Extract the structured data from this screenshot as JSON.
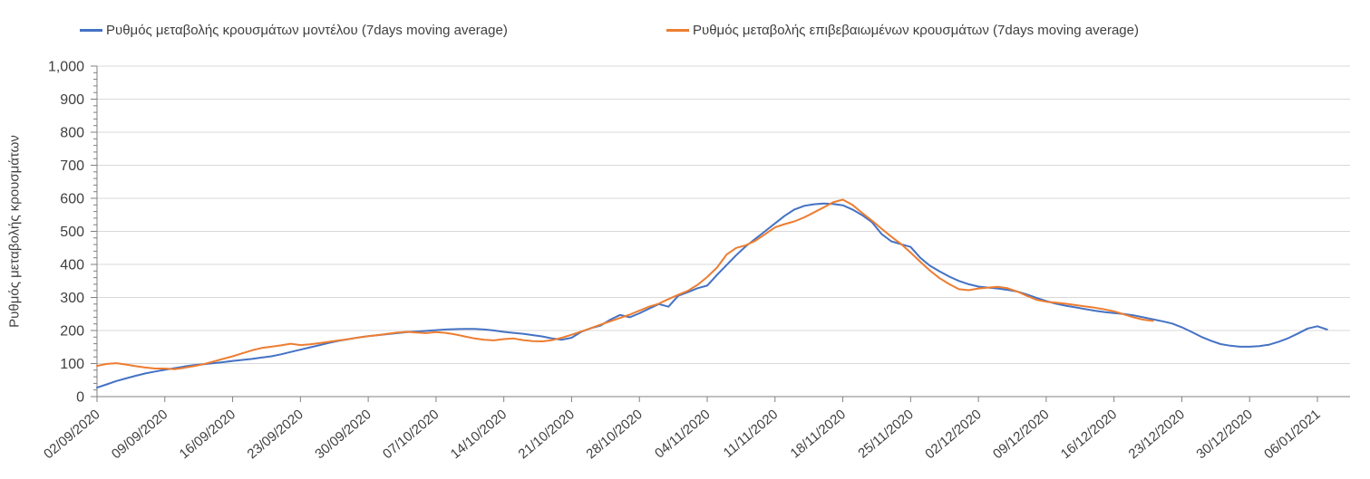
{
  "legend": {
    "items": [
      {
        "label": "Ρυθμός μεταβολής κρουσμάτων μοντέλου (7days moving average)",
        "color": "#4472C4"
      },
      {
        "label": "Ρυθμός μεταβολής επιβεβαιωμένων κρουσμάτων (7days moving average)",
        "color": "#ED7D31"
      }
    ]
  },
  "chart_data": {
    "type": "line",
    "title": "",
    "xlabel": "",
    "ylabel": "Ρυθμός μεταβολής κρουσμάτων",
    "ylim": [
      0,
      1000
    ],
    "y_tick_interval": 100,
    "y_minor_tick_interval": 20,
    "y_tick_labels": [
      "0",
      "100",
      "200",
      "300",
      "400",
      "500",
      "600",
      "700",
      "800",
      "900",
      "1,000"
    ],
    "grid": true,
    "legend_position": "top",
    "x_labels": [
      "02/09/2020",
      "09/09/2020",
      "16/09/2020",
      "23/09/2020",
      "30/09/2020",
      "07/10/2020",
      "14/10/2020",
      "21/10/2020",
      "28/10/2020",
      "04/11/2020",
      "11/11/2020",
      "18/11/2020",
      "25/11/2020",
      "02/12/2020",
      "09/12/2020",
      "16/12/2020",
      "23/12/2020",
      "30/12/2020",
      "06/01/2021"
    ],
    "x_label_day_indices": [
      0,
      7,
      14,
      21,
      28,
      35,
      42,
      49,
      56,
      63,
      70,
      77,
      84,
      91,
      98,
      105,
      112,
      119,
      126
    ],
    "series": [
      {
        "name": "Ρυθμός μεταβολής κρουσμάτων μοντέλου (7days moving average)",
        "color": "#4472C4",
        "start_day": 0,
        "values": [
          27,
          37,
          47,
          55,
          63,
          70,
          76,
          81,
          86,
          91,
          95,
          98,
          101,
          104,
          108,
          111,
          114,
          118,
          122,
          128,
          135,
          142,
          149,
          156,
          163,
          169,
          174,
          179,
          183,
          186,
          189,
          192,
          195,
          197,
          199,
          201,
          203,
          204,
          205,
          205,
          203,
          200,
          196,
          193,
          190,
          186,
          182,
          176,
          172,
          178,
          196,
          207,
          215,
          233,
          247,
          240,
          252,
          266,
          280,
          272,
          305,
          316,
          328,
          336,
          368,
          398,
          428,
          455,
          478,
          501,
          524,
          547,
          566,
          577,
          582,
          584,
          583,
          579,
          566,
          549,
          528,
          492,
          470,
          461,
          453,
          420,
          396,
          379,
          363,
          350,
          340,
          333,
          330,
          327,
          323,
          318,
          309,
          299,
          289,
          281,
          275,
          270,
          265,
          260,
          256,
          253,
          250,
          246,
          240,
          234,
          228,
          221,
          210,
          196,
          181,
          169,
          159,
          154,
          151,
          151,
          153,
          157,
          166,
          177,
          191,
          206,
          213,
          203
        ]
      },
      {
        "name": "Ρυθμός μεταβολής επιβεβαιωμένων κρουσμάτων (7days moving average)",
        "color": "#ED7D31",
        "start_day": 0,
        "values": [
          93,
          99,
          101,
          97,
          92,
          88,
          85,
          85,
          83,
          87,
          92,
          98,
          106,
          114,
          122,
          131,
          140,
          147,
          151,
          155,
          160,
          156,
          158,
          162,
          166,
          170,
          174,
          179,
          183,
          186,
          190,
          194,
          196,
          194,
          192,
          195,
          193,
          188,
          182,
          176,
          172,
          170,
          174,
          176,
          171,
          168,
          167,
          171,
          178,
          187,
          197,
          207,
          218,
          228,
          238,
          248,
          260,
          272,
          281,
          295,
          308,
          320,
          338,
          362,
          390,
          430,
          450,
          458,
          472,
          492,
          512,
          522,
          530,
          542,
          557,
          572,
          588,
          596,
          580,
          556,
          533,
          508,
          484,
          462,
          436,
          408,
          381,
          358,
          340,
          325,
          322,
          327,
          330,
          332,
          328,
          318,
          305,
          293,
          287,
          284,
          281,
          277,
          273,
          269,
          264,
          258,
          249,
          240,
          233,
          229
        ]
      }
    ],
    "colors": {
      "gridline": "#D9D9D9",
      "axis": "#808080",
      "tick_text": "#3f3f3f",
      "background": "#ffffff"
    }
  }
}
